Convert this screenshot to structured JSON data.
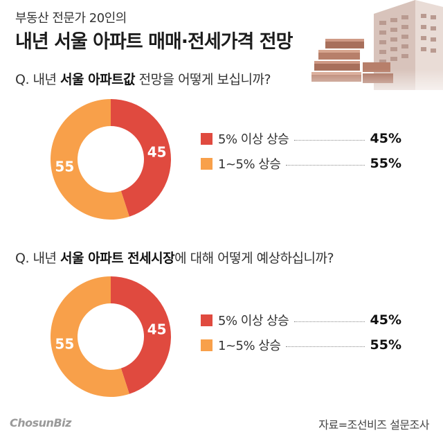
{
  "header": {
    "subtitle": "부동산 전문가 20인의",
    "title": "내년 서울 아파트 매매·전세가격 전망"
  },
  "questions": [
    {
      "prefix": "Q. 내년 ",
      "bold": "서울 아파트값",
      "suffix": " 전망을 어떻게 보십니까?"
    },
    {
      "prefix": "Q. 내년 ",
      "bold": "서울 아파트 전세시장",
      "suffix": "에 대해 어떻게 예상하십니까?"
    }
  ],
  "chart_data": [
    {
      "type": "pie",
      "categories": [
        "5% 이상 상승",
        "1~5% 상승"
      ],
      "values": [
        45,
        55
      ],
      "value_labels": [
        "45",
        "55"
      ],
      "legend_values": [
        "45%",
        "55%"
      ],
      "colors": [
        "#e04a3f",
        "#f8a04a"
      ],
      "legend": "right"
    },
    {
      "type": "pie",
      "categories": [
        "5% 이상 상승",
        "1~5% 상승"
      ],
      "values": [
        45,
        55
      ],
      "value_labels": [
        "45",
        "55"
      ],
      "legend_values": [
        "45%",
        "55%"
      ],
      "colors": [
        "#e04a3f",
        "#f8a04a"
      ],
      "legend": "right"
    }
  ],
  "footer": {
    "logo": "Chosun",
    "logo_suffix": "Biz",
    "source": "자료=조선비즈 설문조사"
  }
}
